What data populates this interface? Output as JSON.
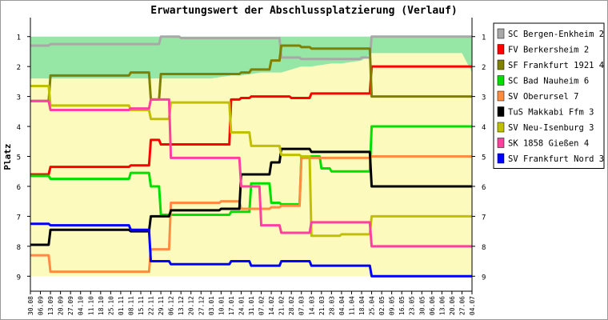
{
  "chart_data": {
    "type": "line",
    "title": "Erwartungswert der Abschlussplatzierung (Verlauf)",
    "ylabel": "Platz",
    "xlabel": "",
    "ylim": [
      0.5,
      9.5
    ],
    "y_reversed": true,
    "y_ticks": [
      "1",
      "2",
      "3",
      "4",
      "5",
      "6",
      "7",
      "8",
      "9"
    ],
    "grid": false,
    "legend_position": "right",
    "x": [
      "30.08",
      "06.09",
      "13.09",
      "20.09",
      "27.09",
      "04.10",
      "11.10",
      "18.10",
      "25.10",
      "01.11",
      "08.11",
      "15.11",
      "22.11",
      "29.11",
      "06.12",
      "13.12",
      "20.12",
      "27.12",
      "03.01",
      "10.01",
      "17.01",
      "24.01",
      "31.01",
      "07.02",
      "14.02",
      "21.02",
      "28.02",
      "07.03",
      "14.03",
      "21.03",
      "28.03",
      "04.04",
      "11.04",
      "18.04",
      "25.04",
      "02.05",
      "09.05",
      "16.05",
      "23.05",
      "30.05",
      "06.06",
      "13.06",
      "20.06",
      "27.06",
      "04.07"
    ],
    "bands": {
      "green_upper": [
        1.0,
        1.0,
        1.0,
        1.0,
        1.0,
        1.0,
        1.0,
        1.0,
        1.0,
        1.0,
        1.0,
        1.0,
        1.0,
        1.0,
        1.0,
        1.0,
        1.0,
        1.0,
        1.0,
        1.0,
        1.0,
        1.0,
        1.0,
        1.0,
        1.0,
        1.0,
        1.0,
        1.0,
        1.0,
        1.0,
        1.0,
        1.0,
        1.0,
        1.0,
        1.0,
        1.0,
        1.0,
        1.0,
        1.0,
        1.0,
        1.0,
        1.0,
        1.0,
        1.0,
        1.0
      ],
      "green_lower": [
        2.4,
        2.4,
        2.4,
        2.4,
        2.4,
        2.4,
        2.4,
        2.4,
        2.4,
        2.4,
        2.4,
        2.4,
        2.4,
        2.4,
        2.4,
        2.4,
        2.4,
        2.4,
        2.4,
        2.35,
        2.3,
        2.3,
        2.25,
        2.2,
        2.2,
        2.2,
        2.1,
        2.0,
        2.0,
        1.95,
        1.9,
        1.9,
        1.85,
        1.8,
        1.55,
        1.55,
        1.55,
        1.55,
        1.55,
        1.55,
        1.55,
        1.55,
        1.55,
        1.55,
        2.2
      ],
      "yellow_lower": [
        9.0,
        9.0,
        9.0,
        9.0,
        9.0,
        9.0,
        9.0,
        9.0,
        9.0,
        9.0,
        9.0,
        9.0,
        9.0,
        9.0,
        9.0,
        9.0,
        9.0,
        9.0,
        9.0,
        9.0,
        9.0,
        9.0,
        9.0,
        9.0,
        9.0,
        9.0,
        9.0,
        9.0,
        9.0,
        9.0,
        9.0,
        9.0,
        9.0,
        9.0,
        9.0,
        9.0,
        9.0,
        9.0,
        9.0,
        9.0,
        9.0,
        9.0,
        9.0,
        9.0,
        9.0
      ]
    },
    "series": [
      {
        "name": "SC Bergen-Enkheim 2",
        "color": "#a8a8a8",
        "values": [
          1.3,
          1.3,
          1.25,
          1.25,
          1.25,
          1.25,
          1.25,
          1.25,
          1.25,
          1.25,
          1.25,
          1.25,
          1.25,
          1.0,
          1.0,
          1.05,
          1.05,
          1.05,
          1.05,
          1.05,
          1.05,
          1.05,
          1.05,
          1.05,
          1.05,
          1.7,
          1.7,
          1.75,
          1.75,
          1.75,
          1.75,
          1.75,
          1.75,
          1.7,
          1.0,
          1.0,
          1.0,
          1.0,
          1.0,
          1.0,
          1.0,
          1.0,
          1.0,
          1.0,
          1.0
        ]
      },
      {
        "name": "FV Berkersheim 2",
        "color": "#ff0000",
        "values": [
          5.6,
          5.6,
          5.35,
          5.35,
          5.35,
          5.35,
          5.35,
          5.35,
          5.35,
          5.35,
          5.3,
          5.3,
          4.45,
          4.6,
          4.6,
          4.6,
          4.6,
          4.6,
          4.6,
          4.6,
          3.1,
          3.05,
          3.0,
          3.0,
          3.0,
          3.0,
          3.05,
          3.05,
          2.9,
          2.9,
          2.9,
          2.9,
          2.9,
          2.9,
          2.0,
          2.0,
          2.0,
          2.0,
          2.0,
          2.0,
          2.0,
          2.0,
          2.0,
          2.0,
          2.0
        ]
      },
      {
        "name": "SF Frankfurt 1921 4",
        "color": "#808000",
        "values": [
          3.15,
          3.15,
          2.3,
          2.3,
          2.3,
          2.3,
          2.3,
          2.3,
          2.3,
          2.3,
          2.2,
          2.2,
          3.1,
          2.25,
          2.25,
          2.25,
          2.25,
          2.25,
          2.25,
          2.25,
          2.25,
          2.2,
          2.1,
          2.1,
          1.8,
          1.3,
          1.3,
          1.35,
          1.4,
          1.4,
          1.4,
          1.4,
          1.4,
          1.4,
          3.0,
          3.0,
          3.0,
          3.0,
          3.0,
          3.0,
          3.0,
          3.0,
          3.0,
          3.0,
          3.0
        ]
      },
      {
        "name": "SC Bad Nauheim 6",
        "color": "#00e000",
        "values": [
          5.65,
          5.65,
          5.75,
          5.75,
          5.75,
          5.75,
          5.75,
          5.75,
          5.75,
          5.75,
          5.55,
          5.55,
          6.0,
          6.95,
          6.95,
          6.95,
          6.95,
          6.95,
          6.95,
          6.95,
          6.85,
          6.85,
          5.9,
          5.9,
          6.55,
          6.6,
          6.6,
          5.0,
          5.0,
          5.4,
          5.5,
          5.5,
          5.5,
          5.5,
          4.0,
          4.0,
          4.0,
          4.0,
          4.0,
          4.0,
          4.0,
          4.0,
          4.0,
          4.0,
          4.0
        ]
      },
      {
        "name": "SV Oberursel 7",
        "color": "#ff8c40",
        "values": [
          8.3,
          8.3,
          8.85,
          8.85,
          8.85,
          8.85,
          8.85,
          8.85,
          8.85,
          8.85,
          8.85,
          8.85,
          8.1,
          8.1,
          6.55,
          6.55,
          6.55,
          6.55,
          6.55,
          6.5,
          6.5,
          6.75,
          6.75,
          6.75,
          6.7,
          6.65,
          6.65,
          5.05,
          5.05,
          5.05,
          5.05,
          5.05,
          5.05,
          5.05,
          5.0,
          5.0,
          5.0,
          5.0,
          5.0,
          5.0,
          5.0,
          5.0,
          5.0,
          5.0,
          5.0
        ]
      },
      {
        "name": "TuS Makkabi Ffm 3",
        "color": "#000000",
        "values": [
          7.95,
          7.95,
          7.45,
          7.45,
          7.45,
          7.45,
          7.45,
          7.45,
          7.45,
          7.45,
          7.5,
          7.5,
          7.0,
          7.0,
          6.8,
          6.8,
          6.8,
          6.8,
          6.8,
          6.75,
          6.75,
          5.6,
          5.6,
          5.6,
          5.2,
          4.75,
          4.75,
          4.75,
          4.85,
          4.85,
          4.85,
          4.85,
          4.85,
          4.85,
          6.0,
          6.0,
          6.0,
          6.0,
          6.0,
          6.0,
          6.0,
          6.0,
          6.0,
          6.0,
          6.0
        ]
      },
      {
        "name": "SV Neu-Isenburg 3",
        "color": "#c0c000",
        "values": [
          2.65,
          2.65,
          3.3,
          3.3,
          3.3,
          3.3,
          3.3,
          3.3,
          3.3,
          3.3,
          3.45,
          3.45,
          3.75,
          3.75,
          3.2,
          3.2,
          3.2,
          3.2,
          3.2,
          3.2,
          4.2,
          4.2,
          4.65,
          4.65,
          4.65,
          4.95,
          4.95,
          5.0,
          7.65,
          7.65,
          7.65,
          7.6,
          7.6,
          7.6,
          7.0,
          7.0,
          7.0,
          7.0,
          7.0,
          7.0,
          7.0,
          7.0,
          7.0,
          7.0,
          7.0
        ]
      },
      {
        "name": "SK 1858 Gießen 4",
        "color": "#ff40a0",
        "values": [
          3.15,
          3.15,
          3.45,
          3.45,
          3.45,
          3.45,
          3.45,
          3.45,
          3.45,
          3.45,
          3.4,
          3.4,
          3.1,
          3.1,
          5.05,
          5.05,
          5.05,
          5.05,
          5.05,
          5.05,
          5.05,
          6.0,
          6.0,
          7.3,
          7.3,
          7.55,
          7.55,
          7.55,
          7.2,
          7.2,
          7.2,
          7.2,
          7.2,
          7.2,
          8.0,
          8.0,
          8.0,
          8.0,
          8.0,
          8.0,
          8.0,
          8.0,
          8.0,
          8.0,
          8.0
        ]
      },
      {
        "name": "SV Frankfurt Nord 3",
        "color": "#0000ff",
        "values": [
          7.25,
          7.25,
          7.3,
          7.3,
          7.3,
          7.3,
          7.3,
          7.3,
          7.3,
          7.3,
          7.45,
          7.45,
          8.5,
          8.5,
          8.6,
          8.6,
          8.6,
          8.6,
          8.6,
          8.6,
          8.5,
          8.5,
          8.65,
          8.65,
          8.65,
          8.5,
          8.5,
          8.5,
          8.65,
          8.65,
          8.65,
          8.65,
          8.65,
          8.65,
          9.0,
          9.0,
          9.0,
          9.0,
          9.0,
          9.0,
          9.0,
          9.0,
          9.0,
          9.0,
          9.0
        ]
      }
    ]
  },
  "colors": {
    "band_green": "#96e7a5",
    "band_yellow": "#fdfabe",
    "axis": "#000000"
  }
}
